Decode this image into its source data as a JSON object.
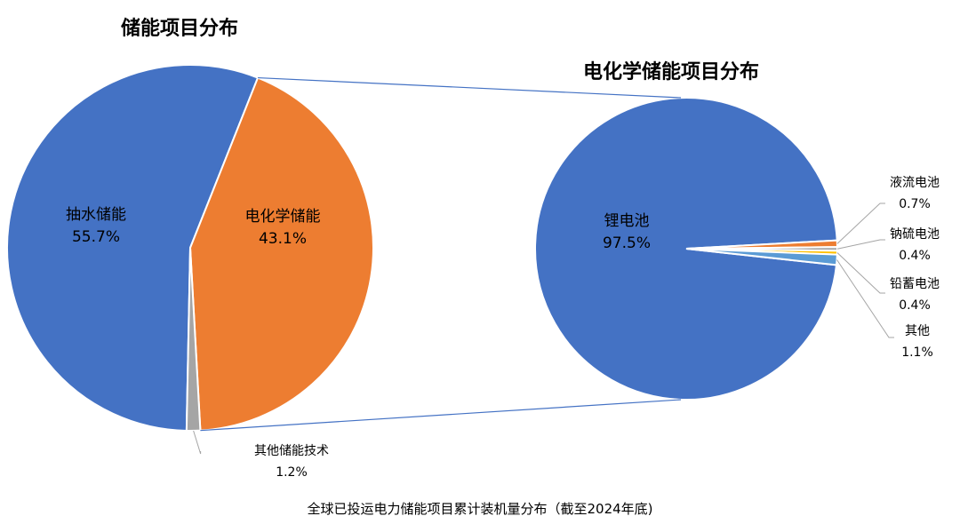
{
  "chart_data": [
    {
      "type": "pie",
      "title": "储能项目分布",
      "slices": [
        {
          "label": "抽水储能",
          "value": 55.7,
          "value_label": "55.7%",
          "color": "#4472C4",
          "label_position": "inside"
        },
        {
          "label": "电化学储能",
          "value": 43.1,
          "value_label": "43.1%",
          "color": "#ED7D31",
          "label_position": "inside"
        },
        {
          "label": "其他储能技术",
          "value": 1.2,
          "value_label": "1.2%",
          "color": "#A5A5A5",
          "label_position": "outside"
        }
      ]
    },
    {
      "type": "pie",
      "title": "电化学储能项目分布",
      "slices": [
        {
          "label": "锂电池",
          "value": 97.5,
          "value_label": "97.5%",
          "color": "#4472C4",
          "label_position": "inside"
        },
        {
          "label": "液流电池",
          "value": 0.7,
          "value_label": "0.7%",
          "color": "#ED7D31",
          "label_position": "outside"
        },
        {
          "label": "钠硫电池",
          "value": 0.4,
          "value_label": "0.4%",
          "color": "#A5A5A5",
          "label_position": "outside"
        },
        {
          "label": "铅蓄电池",
          "value": 0.4,
          "value_label": "0.4%",
          "color": "#FFC000",
          "label_position": "outside"
        },
        {
          "label": "其他",
          "value": 1.1,
          "value_label": "1.1%",
          "color": "#5B9BD5",
          "label_position": "outside"
        }
      ]
    }
  ],
  "caption": "全球已投运电力储能项目累计装机量分布（截至2024年底)",
  "connector_color": "#4472C4",
  "leader_line_color": "#A5A5A5"
}
